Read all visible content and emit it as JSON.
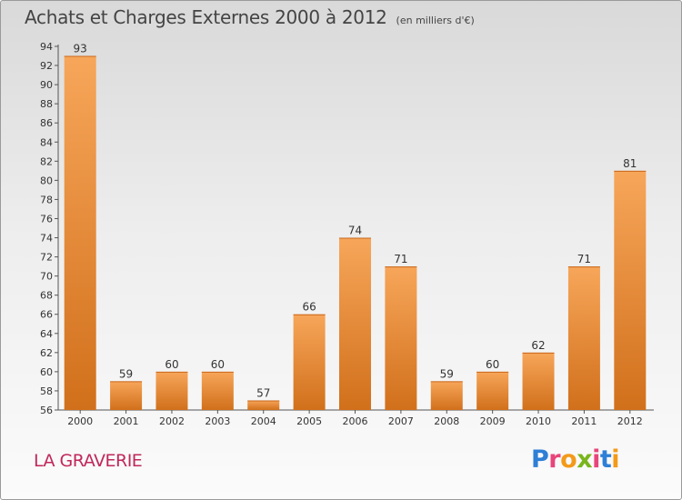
{
  "chart_data": {
    "type": "bar",
    "title": "Achats et Charges Externes 2000 à 2012",
    "subtitle": "(en milliers d'€)",
    "categories": [
      "2000",
      "2001",
      "2002",
      "2003",
      "2004",
      "2005",
      "2006",
      "2007",
      "2008",
      "2009",
      "2010",
      "2011",
      "2012"
    ],
    "values": [
      93,
      59,
      60,
      60,
      57,
      66,
      74,
      71,
      59,
      60,
      62,
      71,
      81
    ],
    "ylim": [
      56,
      94
    ],
    "yticks": [
      56,
      58,
      60,
      62,
      64,
      66,
      68,
      70,
      72,
      74,
      76,
      78,
      80,
      82,
      84,
      86,
      88,
      90,
      92,
      94
    ],
    "grid": false,
    "bar_color_light": "#f7a65a",
    "bar_color_dark": "#d1701b"
  },
  "footer": {
    "commune": "LA GRAVERIE",
    "logo_letters": [
      "P",
      "r",
      "o",
      "x",
      "i",
      "t",
      "i"
    ],
    "logo_colors": [
      "#2e7fd6",
      "#e8457a",
      "#f39a1a",
      "#7ab51d",
      "#e8457a",
      "#2e7fd6",
      "#f39a1a"
    ]
  }
}
